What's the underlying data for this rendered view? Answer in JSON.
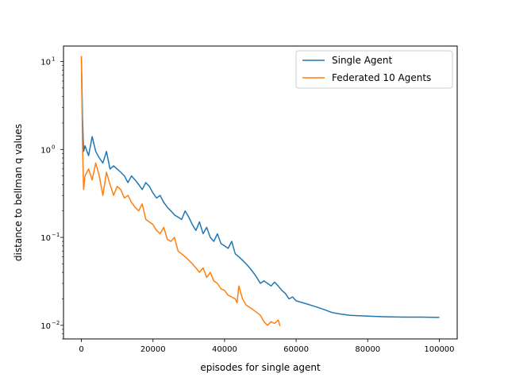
{
  "chart_data": {
    "type": "line",
    "title": "",
    "xlabel": "episodes for single agent",
    "ylabel": "distance to bellman q values",
    "xlim": [
      -5000,
      105000
    ],
    "ylim": [
      0.007,
      15
    ],
    "yscale": "log",
    "grid": false,
    "legend_position": "top-right",
    "x_ticks": [
      {
        "value": 0,
        "label": "0"
      },
      {
        "value": 20000,
        "label": "20000"
      },
      {
        "value": 40000,
        "label": "40000"
      },
      {
        "value": 60000,
        "label": "60000"
      },
      {
        "value": 80000,
        "label": "80000"
      },
      {
        "value": 100000,
        "label": "100000"
      }
    ],
    "y_ticks": [
      {
        "value": 0.01,
        "label": "10",
        "exp": "−2"
      },
      {
        "value": 0.1,
        "label": "10",
        "exp": "−1"
      },
      {
        "value": 1,
        "label": "10",
        "exp": "0"
      },
      {
        "value": 10,
        "label": "10",
        "exp": "1"
      }
    ],
    "series": [
      {
        "name": "Single Agent",
        "color": "#1f77b4",
        "points": [
          [
            0,
            11.5
          ],
          [
            300,
            2.4
          ],
          [
            600,
            0.95
          ],
          [
            1000,
            1.1
          ],
          [
            2000,
            0.85
          ],
          [
            3000,
            1.4
          ],
          [
            4000,
            0.95
          ],
          [
            5000,
            0.8
          ],
          [
            6000,
            0.7
          ],
          [
            7000,
            0.95
          ],
          [
            8000,
            0.6
          ],
          [
            9000,
            0.65
          ],
          [
            10000,
            0.6
          ],
          [
            11000,
            0.55
          ],
          [
            12000,
            0.5
          ],
          [
            13000,
            0.42
          ],
          [
            14000,
            0.5
          ],
          [
            15000,
            0.45
          ],
          [
            16000,
            0.4
          ],
          [
            17000,
            0.35
          ],
          [
            18000,
            0.42
          ],
          [
            19000,
            0.38
          ],
          [
            20000,
            0.32
          ],
          [
            21000,
            0.28
          ],
          [
            22000,
            0.3
          ],
          [
            23000,
            0.25
          ],
          [
            24000,
            0.22
          ],
          [
            25000,
            0.2
          ],
          [
            26000,
            0.18
          ],
          [
            27000,
            0.17
          ],
          [
            28000,
            0.16
          ],
          [
            29000,
            0.2
          ],
          [
            30000,
            0.17
          ],
          [
            31000,
            0.14
          ],
          [
            32000,
            0.12
          ],
          [
            33000,
            0.15
          ],
          [
            34000,
            0.11
          ],
          [
            35000,
            0.13
          ],
          [
            36000,
            0.1
          ],
          [
            37000,
            0.09
          ],
          [
            38000,
            0.11
          ],
          [
            39000,
            0.085
          ],
          [
            40000,
            0.08
          ],
          [
            41000,
            0.075
          ],
          [
            42000,
            0.09
          ],
          [
            43000,
            0.065
          ],
          [
            44000,
            0.06
          ],
          [
            45000,
            0.055
          ],
          [
            46000,
            0.05
          ],
          [
            47000,
            0.045
          ],
          [
            48000,
            0.04
          ],
          [
            49000,
            0.035
          ],
          [
            50000,
            0.03
          ],
          [
            51000,
            0.032
          ],
          [
            52000,
            0.03
          ],
          [
            53000,
            0.028
          ],
          [
            54000,
            0.031
          ],
          [
            55000,
            0.028
          ],
          [
            56000,
            0.025
          ],
          [
            57000,
            0.023
          ],
          [
            58000,
            0.02
          ],
          [
            59000,
            0.021
          ],
          [
            60000,
            0.019
          ],
          [
            62000,
            0.018
          ],
          [
            64000,
            0.017
          ],
          [
            66000,
            0.016
          ],
          [
            68000,
            0.015
          ],
          [
            70000,
            0.014
          ],
          [
            72000,
            0.0135
          ],
          [
            75000,
            0.013
          ],
          [
            80000,
            0.0127
          ],
          [
            85000,
            0.0125
          ],
          [
            90000,
            0.0124
          ],
          [
            95000,
            0.0124
          ],
          [
            100000,
            0.0123
          ]
        ]
      },
      {
        "name": "Federated 10 Agents",
        "color": "#ff7f0e",
        "points": [
          [
            0,
            11.5
          ],
          [
            300,
            1.2
          ],
          [
            600,
            0.35
          ],
          [
            1000,
            0.5
          ],
          [
            2000,
            0.6
          ],
          [
            3000,
            0.45
          ],
          [
            4000,
            0.7
          ],
          [
            5000,
            0.5
          ],
          [
            6000,
            0.3
          ],
          [
            7000,
            0.55
          ],
          [
            8000,
            0.4
          ],
          [
            9000,
            0.3
          ],
          [
            10000,
            0.38
          ],
          [
            11000,
            0.35
          ],
          [
            12000,
            0.28
          ],
          [
            13000,
            0.3
          ],
          [
            14000,
            0.25
          ],
          [
            15000,
            0.22
          ],
          [
            16000,
            0.2
          ],
          [
            17000,
            0.24
          ],
          [
            18000,
            0.16
          ],
          [
            19000,
            0.15
          ],
          [
            20000,
            0.14
          ],
          [
            21000,
            0.12
          ],
          [
            22000,
            0.11
          ],
          [
            23000,
            0.13
          ],
          [
            24000,
            0.095
          ],
          [
            25000,
            0.09
          ],
          [
            26000,
            0.1
          ],
          [
            27000,
            0.07
          ],
          [
            28000,
            0.065
          ],
          [
            29000,
            0.06
          ],
          [
            30000,
            0.055
          ],
          [
            31000,
            0.05
          ],
          [
            32000,
            0.045
          ],
          [
            33000,
            0.04
          ],
          [
            34000,
            0.045
          ],
          [
            35000,
            0.035
          ],
          [
            36000,
            0.04
          ],
          [
            37000,
            0.032
          ],
          [
            38000,
            0.03
          ],
          [
            39000,
            0.026
          ],
          [
            40000,
            0.025
          ],
          [
            41000,
            0.022
          ],
          [
            42000,
            0.021
          ],
          [
            43000,
            0.02
          ],
          [
            43500,
            0.018
          ],
          [
            44000,
            0.028
          ],
          [
            45000,
            0.02
          ],
          [
            46000,
            0.017
          ],
          [
            47000,
            0.016
          ],
          [
            48000,
            0.015
          ],
          [
            49000,
            0.014
          ],
          [
            50000,
            0.013
          ],
          [
            50500,
            0.012
          ],
          [
            51000,
            0.011
          ],
          [
            52000,
            0.01
          ],
          [
            53000,
            0.011
          ],
          [
            54000,
            0.0105
          ],
          [
            55000,
            0.0115
          ],
          [
            55500,
            0.0098
          ]
        ]
      }
    ]
  }
}
